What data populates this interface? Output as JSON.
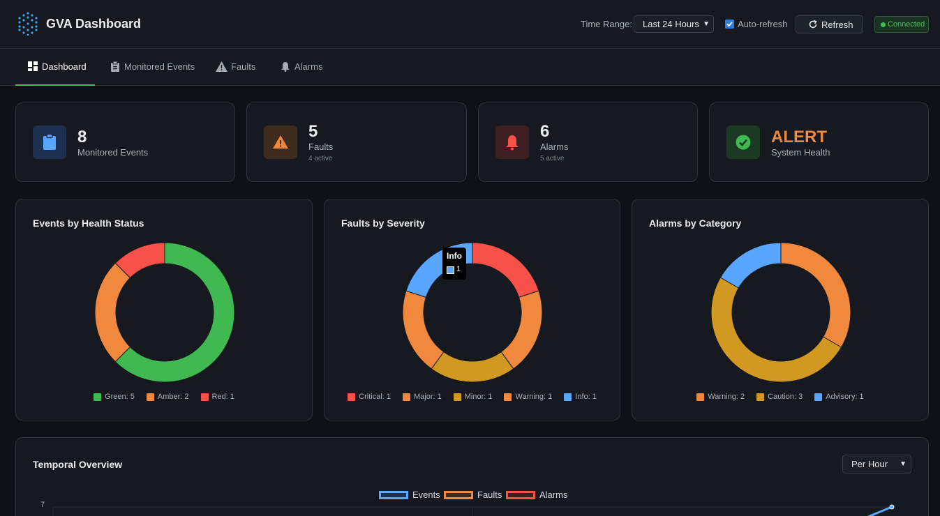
{
  "header": {
    "app_title": "GVA Dashboard",
    "time_range_label": "Time Range:",
    "time_range_value": "Last 24 Hours",
    "auto_refresh_label": "Auto-refresh",
    "auto_refresh_checked": true,
    "refresh_label": "Refresh",
    "connection_status": "Connected"
  },
  "nav": {
    "tabs": [
      {
        "label": "Dashboard",
        "icon": "dashboard-icon",
        "active": true
      },
      {
        "label": "Monitored Events",
        "icon": "clipboard-icon",
        "active": false
      },
      {
        "label": "Faults",
        "icon": "warning-icon",
        "active": false
      },
      {
        "label": "Alarms",
        "icon": "bell-icon",
        "active": false
      }
    ]
  },
  "stats": [
    {
      "value": "8",
      "label": "Monitored Events",
      "sub": "",
      "icon": "clipboard-icon",
      "color": "#58a6ff"
    },
    {
      "value": "5",
      "label": "Faults",
      "sub": "4 active",
      "icon": "warning-icon",
      "color": "#f0883e"
    },
    {
      "value": "6",
      "label": "Alarms",
      "sub": "5 active",
      "icon": "bell-icon",
      "color": "#f85149"
    },
    {
      "value": "ALERT",
      "label": "System Health",
      "sub": "",
      "icon": "check-circle-icon",
      "color": "#3fb950"
    }
  ],
  "chart_data": [
    {
      "type": "pie",
      "title": "Events by Health Status",
      "categories": [
        "Green",
        "Amber",
        "Red"
      ],
      "values": [
        5,
        2,
        1
      ],
      "legend": [
        "Green: 5",
        "Amber: 2",
        "Red: 1"
      ],
      "colors": [
        "#3fb950",
        "#f0883e",
        "#f85149"
      ]
    },
    {
      "type": "pie",
      "title": "Faults by Severity",
      "categories": [
        "Critical",
        "Major",
        "Minor",
        "Warning",
        "Info"
      ],
      "values": [
        1,
        1,
        1,
        1,
        1
      ],
      "legend": [
        "Critical: 1",
        "Major: 1",
        "Minor: 1",
        "Warning: 1",
        "Info: 1"
      ],
      "colors": [
        "#f85149",
        "#f0883e",
        "#d29922",
        "#f0883e",
        "#58a6ff"
      ],
      "tooltip": {
        "title": "Info",
        "value": "1"
      }
    },
    {
      "type": "pie",
      "title": "Alarms by Category",
      "categories": [
        "Warning",
        "Caution",
        "Advisory"
      ],
      "values": [
        2,
        3,
        1
      ],
      "legend": [
        "Warning: 2",
        "Caution: 3",
        "Advisory: 1"
      ],
      "colors": [
        "#f0883e",
        "#d29922",
        "#58a6ff"
      ]
    },
    {
      "type": "line",
      "title": "Temporal Overview",
      "series": [
        {
          "name": "Events",
          "color": "#58a6ff"
        },
        {
          "name": "Faults",
          "color": "#f0883e"
        },
        {
          "name": "Alarms",
          "color": "#f85149"
        }
      ],
      "y_ticks": [
        "7"
      ]
    }
  ],
  "temporal": {
    "title": "Temporal Overview",
    "granularity": "Per Hour"
  }
}
